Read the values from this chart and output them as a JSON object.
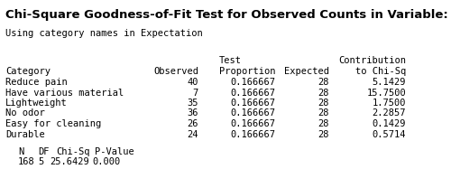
{
  "title": "Chi-Square Goodness-of-Fit Test for Observed Counts in Variable: Frequency",
  "subtitle": "Using category names in Expectation",
  "header_line1_col2": "Test",
  "header_line1_col4": "Contribution",
  "header_line2": [
    "Category",
    "Observed",
    "Proportion",
    "Expected",
    "to Chi-Sq"
  ],
  "rows": [
    [
      "Reduce pain",
      "40",
      "0.166667",
      "28",
      "5.1429"
    ],
    [
      "Have various material",
      "7",
      "0.166667",
      "28",
      "15.7500"
    ],
    [
      "Lightweight",
      "35",
      "0.166667",
      "28",
      "1.7500"
    ],
    [
      "No odor",
      "36",
      "0.166667",
      "28",
      "2.2857"
    ],
    [
      "Easy for cleaning",
      "26",
      "0.166667",
      "28",
      "0.1429"
    ],
    [
      "Durable",
      "24",
      "0.166667",
      "28",
      "0.5714"
    ]
  ],
  "footer_header": [
    "N",
    "DF",
    "Chi-Sq",
    "P-Value"
  ],
  "footer_values": [
    "168",
    "5",
    "25.6429",
    "0.000"
  ],
  "bg_color": "#ffffff",
  "text_color": "#000000",
  "title_fontsize": 9.5,
  "body_fontsize": 7.5
}
